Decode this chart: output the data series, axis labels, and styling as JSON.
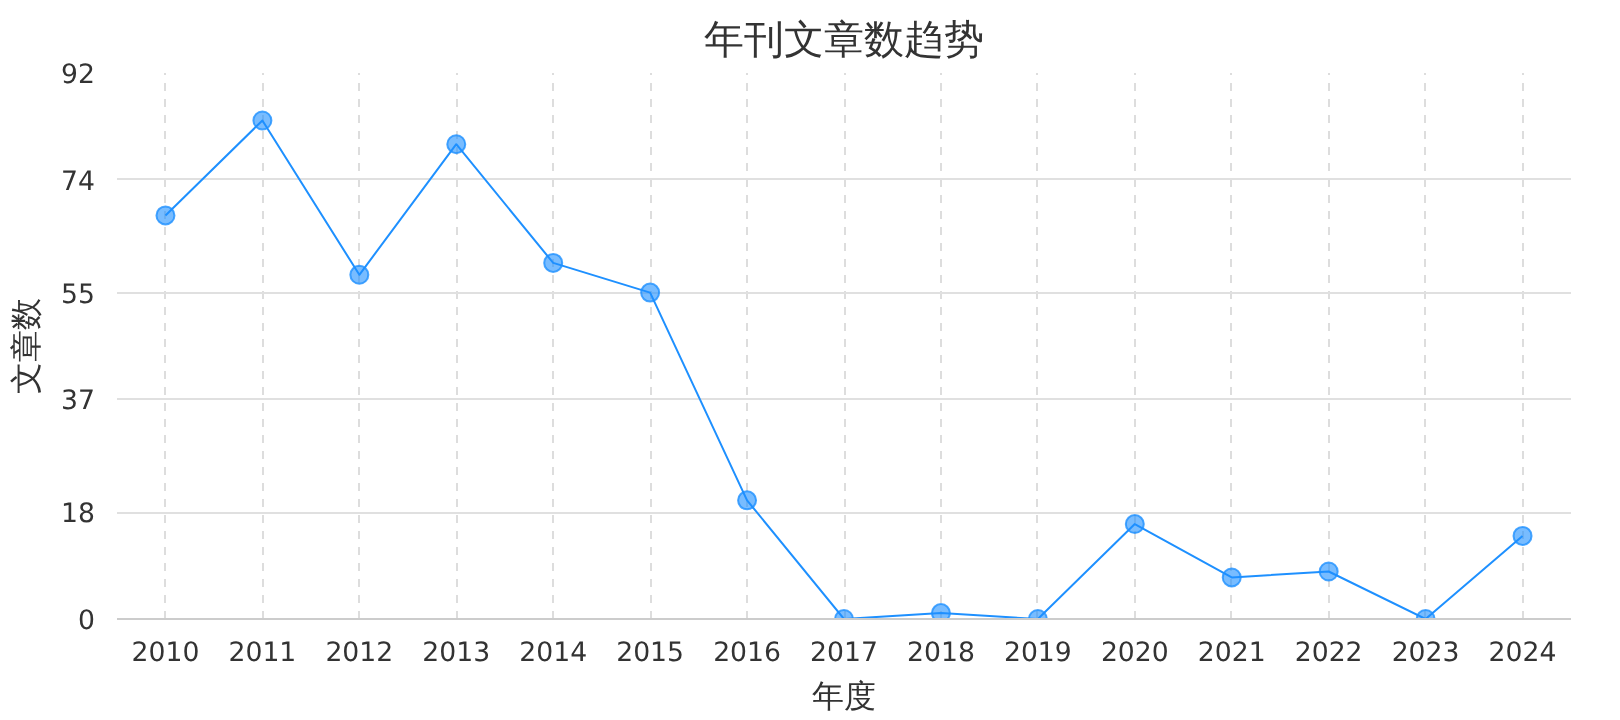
{
  "chart_data": {
    "type": "line",
    "title": "年刊文章数趋势",
    "xlabel": "年度",
    "ylabel": "文章数",
    "categories": [
      "2010",
      "2011",
      "2012",
      "2013",
      "2014",
      "2015",
      "2016",
      "2017",
      "2018",
      "2019",
      "2020",
      "2021",
      "2022",
      "2023",
      "2024"
    ],
    "series": [
      {
        "color": "#1e90ff",
        "values": [
          68,
          84,
          58,
          80,
          60,
          55,
          20,
          0,
          1,
          0,
          16,
          7,
          8,
          0,
          14
        ]
      }
    ],
    "ylim": [
      0,
      92
    ],
    "yticks": [
      0,
      18,
      37,
      55,
      74,
      92
    ],
    "grid": true,
    "marker": "circle",
    "line_style": "solid"
  }
}
